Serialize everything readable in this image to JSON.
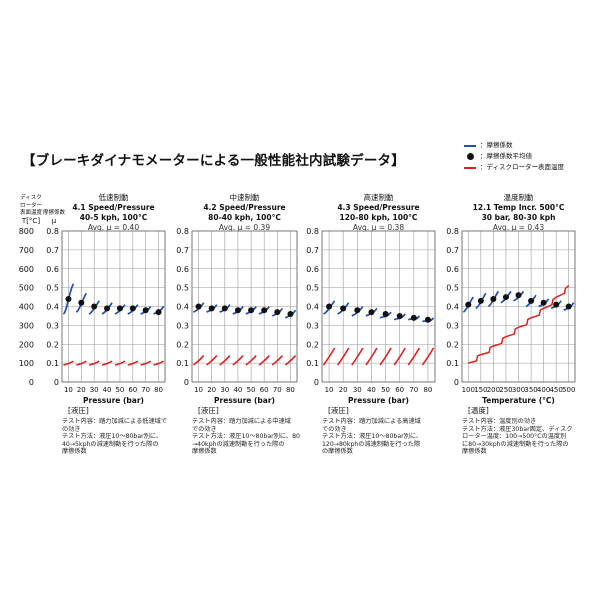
{
  "page": {
    "title": "【ブレーキダイナモメーターによる一般性能社内試験データ】",
    "legend": [
      {
        "kind": "line",
        "color": "#1f4fb3",
        "label": "：摩擦係数"
      },
      {
        "kind": "dot",
        "color": "#111111",
        "label": "：摩擦係数平均値"
      },
      {
        "kind": "line",
        "color": "#e0201e",
        "label": "：ディスクローター表面温度"
      }
    ],
    "axis_heads": {
      "temp_lines": [
        "ディスク",
        "ローター",
        "表面温度",
        "T[°C]"
      ],
      "mu_lines": [
        "摩擦係数",
        "μ"
      ]
    },
    "left_temp_ticks": [
      "800",
      "700",
      "600",
      "500",
      "400",
      "300",
      "200",
      "100",
      "0"
    ],
    "colors": {
      "mu": "#1f4fb3",
      "temp": "#e0201e",
      "avg_dot": "#111111",
      "grid": "#9a9a9a"
    }
  },
  "chart_data": [
    {
      "type": "line",
      "name_jp": "低速制動",
      "title": "4.1 Speed/Pressure",
      "subtitle": "40-5 kph, 100°C",
      "avg": "Avg. μ = 0.40",
      "mu_ticks": [
        "0.8",
        "0.7",
        "0.6",
        "0.5",
        "0.4",
        "0.3",
        "0.2",
        "0.1",
        "0"
      ],
      "x_ticks": [
        "10",
        "20",
        "30",
        "40",
        "50",
        "60",
        "70",
        "80"
      ],
      "xlim": [
        5,
        85
      ],
      "ylim": [
        0,
        0.8
      ],
      "xlabel": "Pressure (bar)",
      "xlabel_jp": "[液圧]",
      "x": [
        10,
        20,
        30,
        40,
        50,
        60,
        70,
        80
      ],
      "mu_avg": [
        0.44,
        0.42,
        0.4,
        0.39,
        0.39,
        0.39,
        0.38,
        0.37
      ],
      "mu_start": [
        0.36,
        0.37,
        0.36,
        0.36,
        0.36,
        0.36,
        0.36,
        0.36
      ],
      "mu_end": [
        0.52,
        0.47,
        0.43,
        0.42,
        0.41,
        0.41,
        0.4,
        0.4
      ],
      "temp_start": [
        90,
        90,
        90,
        90,
        90,
        90,
        90,
        90
      ],
      "temp_end": [
        110,
        110,
        110,
        110,
        110,
        110,
        110,
        110
      ],
      "note": [
        "テスト内容：踏力加減による低速域で",
        "の効き",
        "テスト方法：液圧10～80bar別に、",
        "40→5kphの減速制動を行った際の",
        "摩擦係数"
      ]
    },
    {
      "type": "line",
      "name_jp": "中速制動",
      "title": "4.2 Speed/Pressure",
      "subtitle": "80-40 kph, 100°C",
      "avg": "Avg. μ = 0.39",
      "mu_ticks": [
        "0.8",
        "0.7",
        "0.6",
        "0.5",
        "0.4",
        "0.3",
        "0.2",
        "0.1",
        "0"
      ],
      "x_ticks": [
        "10",
        "20",
        "30",
        "40",
        "50",
        "60",
        "70",
        "80"
      ],
      "xlim": [
        5,
        85
      ],
      "ylim": [
        0,
        0.8
      ],
      "xlabel": "Pressure (bar)",
      "xlabel_jp": "[液圧]",
      "x": [
        10,
        20,
        30,
        40,
        50,
        60,
        70,
        80
      ],
      "mu_avg": [
        0.4,
        0.39,
        0.39,
        0.38,
        0.38,
        0.38,
        0.37,
        0.36
      ],
      "mu_start": [
        0.37,
        0.37,
        0.37,
        0.36,
        0.36,
        0.36,
        0.35,
        0.34
      ],
      "mu_end": [
        0.42,
        0.41,
        0.41,
        0.4,
        0.4,
        0.4,
        0.39,
        0.38
      ],
      "temp_start": [
        90,
        90,
        90,
        90,
        90,
        90,
        90,
        90
      ],
      "temp_end": [
        140,
        140,
        140,
        140,
        140,
        140,
        140,
        140
      ],
      "note": [
        "テスト内容：踏力加減による中速域",
        "での効き",
        "テスト方法：液圧10～80bar別に、80",
        "→40kphの減速制動を行った際の",
        "摩擦係数"
      ]
    },
    {
      "type": "line",
      "name_jp": "高速制動",
      "title": "4.3 Speed/Pressure",
      "subtitle": "120-80 kph, 100°C",
      "avg": "Avg. μ = 0.38",
      "mu_ticks": [
        "0.8",
        "0.7",
        "0.6",
        "0.5",
        "0.4",
        "0.3",
        "0.2",
        "0.1",
        "0"
      ],
      "x_ticks": [
        "10",
        "20",
        "30",
        "40",
        "50",
        "60",
        "70",
        "80"
      ],
      "xlim": [
        5,
        85
      ],
      "ylim": [
        0,
        0.8
      ],
      "xlabel": "Pressure (bar)",
      "xlabel_jp": "[液圧]",
      "x": [
        10,
        20,
        30,
        40,
        50,
        60,
        70,
        80
      ],
      "mu_avg": [
        0.4,
        0.39,
        0.38,
        0.37,
        0.36,
        0.35,
        0.34,
        0.33
      ],
      "mu_start": [
        0.36,
        0.36,
        0.35,
        0.35,
        0.34,
        0.33,
        0.33,
        0.32
      ],
      "mu_end": [
        0.43,
        0.42,
        0.4,
        0.39,
        0.37,
        0.36,
        0.35,
        0.34
      ],
      "temp_start": [
        90,
        90,
        90,
        90,
        90,
        90,
        90,
        90
      ],
      "temp_end": [
        180,
        180,
        180,
        180,
        180,
        180,
        180,
        180
      ],
      "note": [
        "テスト内容：踏力加減による高速域",
        "での効き",
        "テスト方法：液圧10～80bar別に、",
        "120→80kphの減速制動を行った際",
        "の摩擦係数"
      ]
    },
    {
      "type": "line",
      "name_jp": "温度制動",
      "title": "12.1 Temp Incr. 500°C",
      "subtitle": "30 bar, 80-30 kph",
      "avg": "Avg. μ = 0.43",
      "mu_ticks": [
        "0.8",
        "0.7",
        "0.6",
        "0.5",
        "0.4",
        "0.3",
        "0.2",
        "0.1",
        "0"
      ],
      "x_ticks": [
        "100",
        "150",
        "200",
        "250",
        "300",
        "350",
        "400",
        "450",
        "500"
      ],
      "xlim": [
        75,
        525
      ],
      "ylim": [
        0,
        0.8
      ],
      "xlabel": "Temperature (°C)",
      "xlabel_jp": "[温度]",
      "x": [
        100,
        150,
        200,
        250,
        300,
        350,
        400,
        450,
        500
      ],
      "mu_avg": [
        0.41,
        0.43,
        0.44,
        0.45,
        0.46,
        0.43,
        0.42,
        0.41,
        0.4
      ],
      "mu_start": [
        0.37,
        0.39,
        0.4,
        0.42,
        0.43,
        0.4,
        0.4,
        0.39,
        0.38
      ],
      "mu_end": [
        0.45,
        0.47,
        0.48,
        0.48,
        0.48,
        0.46,
        0.44,
        0.43,
        0.42
      ],
      "temp_line": {
        "x": [
          100,
          150,
          200,
          250,
          300,
          350,
          400,
          450,
          500
        ],
        "t": [
          100,
          145,
          190,
          240,
          290,
          340,
          390,
          450,
          510
        ]
      },
      "note": [
        "テスト内容：温度別の効き",
        "テスト方法：液圧30bar固定、ディスク",
        "ローター温度：100→500°Cの温度別",
        "に80→30kphの減速制動を行った際の",
        "摩擦係数"
      ]
    }
  ]
}
